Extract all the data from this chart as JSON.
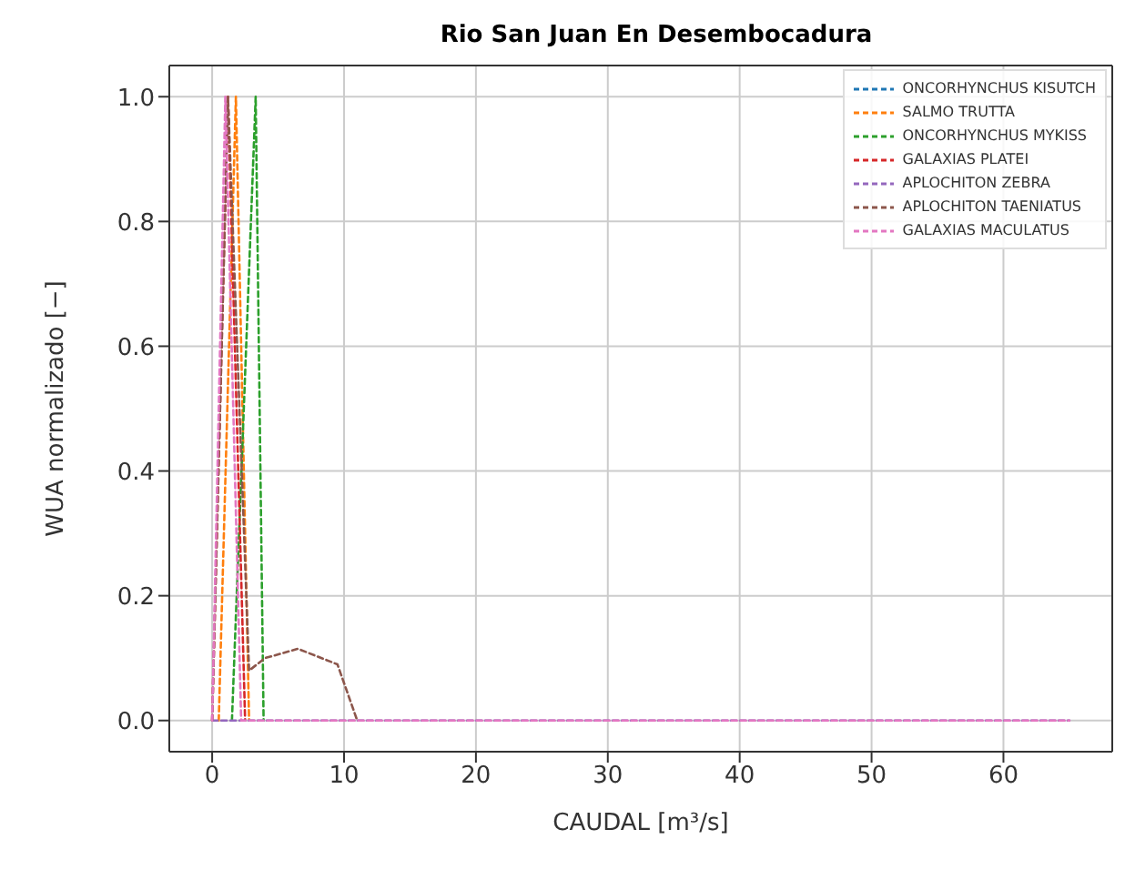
{
  "chart_data": {
    "type": "line",
    "title": "Rio San Juan En Desembocadura",
    "xlabel": "CAUDAL [m³/s]",
    "ylabel": "WUA normalizado [−]",
    "xlim": [
      -3.25,
      68.25
    ],
    "xticks": [
      0,
      10,
      20,
      30,
      40,
      50,
      60
    ],
    "ylim": [
      -0.05,
      1.05
    ],
    "yticks": [
      {
        "value": 0,
        "label": "0.0"
      },
      {
        "value": 0.2,
        "label": "0.2"
      },
      {
        "value": 0.4,
        "label": "0.4"
      },
      {
        "value": 0.6,
        "label": "0.6"
      },
      {
        "value": 0.8,
        "label": "0.8"
      },
      {
        "value": 1,
        "label": "1.0"
      }
    ],
    "grid": true,
    "legend": "top right",
    "line_style": "dashed",
    "marker": "none",
    "series": [
      {
        "name": "ONCORHYNCHUS KISUTCH",
        "color": "#1f77b4"
      },
      {
        "name": "SALMO TRUTTA",
        "color": "#ff7f0e",
        "x": [
          0.5,
          1.8,
          2.8
        ],
        "values": [
          0,
          1,
          0
        ]
      },
      {
        "name": "ONCORHYNCHUS MYKISS",
        "color": "#2ca02c",
        "x": [
          1.5,
          3.3,
          3.9
        ],
        "values": [
          0,
          1,
          0
        ]
      },
      {
        "name": "GALAXIAS PLATEI",
        "color": "#d62728",
        "x": [
          0,
          1.2,
          2.5
        ],
        "values": [
          0,
          1,
          0
        ]
      },
      {
        "name": "APLOCHITON ZEBRA",
        "color": "#9467bd",
        "x": [
          0,
          65
        ],
        "values": [
          0,
          0
        ]
      },
      {
        "name": "APLOCHITON TAENIATUS",
        "color": "#8c564b",
        "x": [
          0,
          1.2,
          2.8,
          4,
          6.5,
          9.5,
          11
        ],
        "values": [
          0,
          1,
          0.08,
          0.1,
          0.115,
          0.09,
          0
        ]
      },
      {
        "name": "GALAXIAS MACULATUS",
        "color": "#e377c2",
        "x": [
          0,
          1,
          2.2,
          65
        ],
        "values": [
          0,
          1,
          0,
          0
        ]
      }
    ]
  }
}
